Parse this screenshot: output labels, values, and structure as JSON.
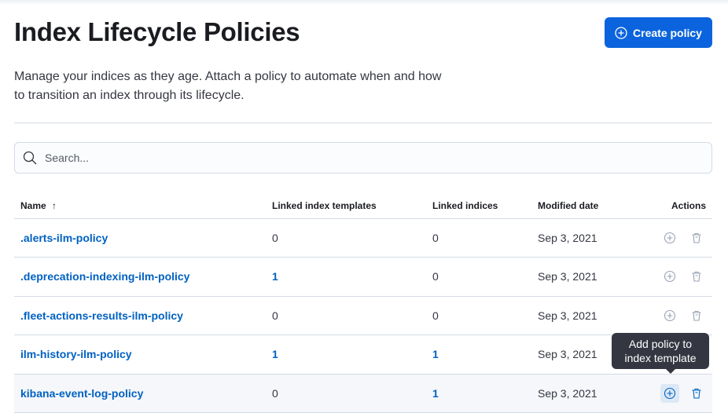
{
  "page": {
    "title": "Index Lifecycle Policies",
    "description": "Manage your indices as they age. Attach a policy to automate when and how to transition an index through its lifecycle.",
    "create_label": "Create policy"
  },
  "search": {
    "placeholder": "Search..."
  },
  "table": {
    "columns": [
      "Name",
      "Linked index templates",
      "Linked indices",
      "Modified date",
      "Actions"
    ],
    "sort": {
      "column": "Name",
      "direction": "ascending"
    },
    "rows": [
      {
        "name": ".alerts-ilm-policy",
        "templates": "0",
        "indices": "0",
        "modified": "Sep 3, 2021"
      },
      {
        "name": ".deprecation-indexing-ilm-policy",
        "templates": "1",
        "indices": "0",
        "modified": "Sep 3, 2021"
      },
      {
        "name": ".fleet-actions-results-ilm-policy",
        "templates": "0",
        "indices": "0",
        "modified": "Sep 3, 2021"
      },
      {
        "name": "ilm-history-ilm-policy",
        "templates": "1",
        "indices": "1",
        "modified": "Sep 3, 2021"
      },
      {
        "name": "kibana-event-log-policy",
        "templates": "0",
        "indices": "1",
        "modified": "Sep 3, 2021"
      }
    ]
  },
  "tooltip": {
    "text": "Add policy to index template"
  },
  "colors": {
    "accent": "#0b64dd",
    "link": "#0061c2"
  }
}
